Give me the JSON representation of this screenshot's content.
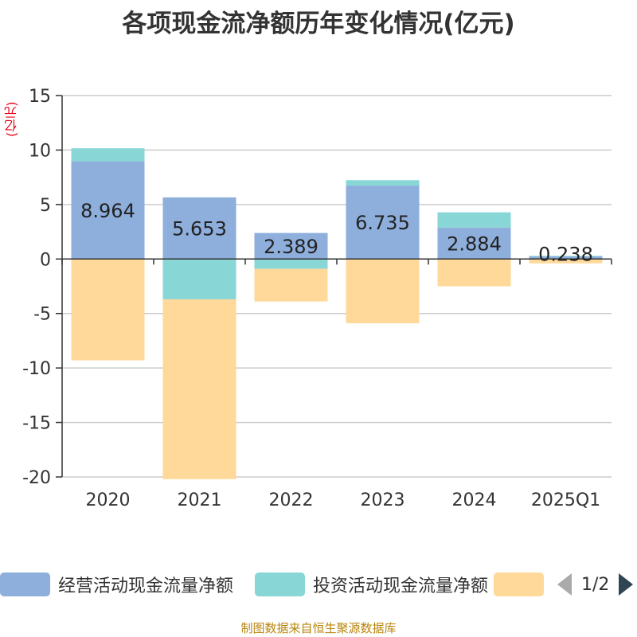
{
  "chart_data": {
    "type": "bar",
    "stacked": true,
    "title": "各项现金流净额历年变化情况(亿元)",
    "ylabel": "(亿元)",
    "ylim": [
      -20,
      15
    ],
    "yticks": [
      15,
      10,
      5,
      0,
      -5,
      -10,
      -15,
      -20
    ],
    "categories": [
      "2020",
      "2021",
      "2022",
      "2023",
      "2024",
      "2025Q1"
    ],
    "series": [
      {
        "name": "经营活动现金流量净额",
        "color": "#8eaedb",
        "values": [
          8.964,
          5.653,
          2.389,
          6.735,
          2.884,
          0.238
        ]
      },
      {
        "name": "投资活动现金流量净额",
        "color": "#88d6d6",
        "values": [
          1.2,
          -3.7,
          -0.9,
          0.5,
          1.4,
          0.05
        ]
      },
      {
        "name": "",
        "color": "#fed99a",
        "values": [
          -9.3,
          -16.5,
          -3.0,
          -5.9,
          -2.5,
          -0.4
        ]
      }
    ],
    "data_labels": [
      "8.964",
      "5.653",
      "2.389",
      "6.735",
      "2.884",
      "0.238"
    ],
    "legend_position": "bottom"
  },
  "legend": {
    "page_text": "1/2"
  },
  "footer": "制图数据来自恒生聚源数据库"
}
